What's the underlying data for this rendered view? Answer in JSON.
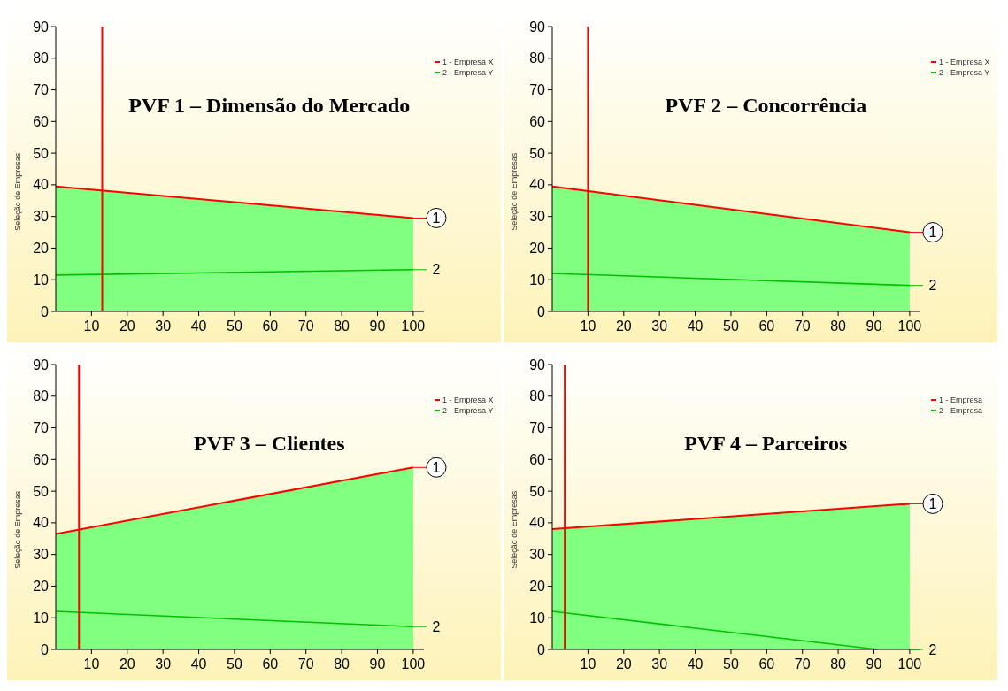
{
  "chart_data": [
    {
      "type": "line",
      "title": "PVF 1 – Dimensão do Mercado",
      "ylabel": "Seleção de Empresas",
      "xlim": [
        0,
        103
      ],
      "ylim": [
        0,
        90
      ],
      "xticks": [
        10,
        20,
        30,
        40,
        50,
        60,
        70,
        80,
        90,
        100
      ],
      "yticks": [
        0,
        10,
        20,
        30,
        40,
        50,
        60,
        70,
        80,
        90
      ],
      "legend": "top right",
      "series": [
        {
          "type": "area",
          "color": "#80ff80",
          "x": [
            0,
            100
          ],
          "values": [
            39.5,
            29.5
          ]
        },
        {
          "name": "1 - Empresa X",
          "type": "line",
          "color": "#ff0000",
          "x": [
            0,
            100
          ],
          "values": [
            39.5,
            29.5
          ]
        },
        {
          "name": "2 - Empresa Y",
          "color": "#00c000",
          "x": [
            0,
            100
          ],
          "values": [
            11.5,
            13.2
          ]
        }
      ],
      "ref_lines": [
        {
          "axis": "x",
          "value": 13,
          "color": "#ff0000"
        }
      ],
      "annotations": [
        "1",
        "2"
      ]
    },
    {
      "type": "line",
      "title": "PVF 2 – Concorrência",
      "ylabel": "Seleção de Empresas",
      "xlim": [
        0,
        103
      ],
      "ylim": [
        0,
        90
      ],
      "xticks": [
        10,
        20,
        30,
        40,
        50,
        60,
        70,
        80,
        90,
        100
      ],
      "yticks": [
        0,
        10,
        20,
        30,
        40,
        50,
        60,
        70,
        80,
        90
      ],
      "legend": "top right",
      "series": [
        {
          "type": "area",
          "color": "#80ff80",
          "x": [
            0,
            100
          ],
          "values": [
            39.5,
            25
          ]
        },
        {
          "name": "1 - Empresa X",
          "type": "line",
          "color": "#ff0000",
          "x": [
            0,
            100
          ],
          "values": [
            39.5,
            25
          ]
        },
        {
          "name": "2 - Empresa Y",
          "color": "#00c000",
          "x": [
            0,
            100
          ],
          "values": [
            12,
            8.2
          ]
        }
      ],
      "ref_lines": [
        {
          "axis": "x",
          "value": 10,
          "color": "#ff0000"
        }
      ],
      "annotations": [
        "1",
        "2"
      ]
    },
    {
      "type": "line",
      "title": "PVF 3 – Clientes",
      "ylabel": "Seleção de Empresas",
      "xlim": [
        0,
        103
      ],
      "ylim": [
        0,
        90
      ],
      "xticks": [
        10,
        20,
        30,
        40,
        50,
        60,
        70,
        80,
        90,
        100
      ],
      "yticks": [
        0,
        10,
        20,
        30,
        40,
        50,
        60,
        70,
        80,
        90
      ],
      "legend": "top right",
      "series": [
        {
          "type": "area",
          "color": "#80ff80",
          "x": [
            0,
            100
          ],
          "values": [
            36.5,
            57.5
          ]
        },
        {
          "name": "1 - Empresa X",
          "type": "line",
          "color": "#ff0000",
          "x": [
            0,
            100
          ],
          "values": [
            36.5,
            57.5
          ]
        },
        {
          "name": "2 - Empresa Y",
          "color": "#00c000",
          "x": [
            0,
            100
          ],
          "values": [
            12,
            7.2
          ]
        }
      ],
      "ref_lines": [
        {
          "axis": "x",
          "value": 6.5,
          "color": "#ff0000"
        }
      ],
      "annotations": [
        "1",
        "2"
      ]
    },
    {
      "type": "line",
      "title": "PVF 4 – Parceiros",
      "ylabel": "Seleção de Empresas",
      "xlim": [
        0,
        103
      ],
      "ylim": [
        0,
        90
      ],
      "xticks": [
        10,
        20,
        30,
        40,
        50,
        60,
        70,
        80,
        90,
        100
      ],
      "yticks": [
        0,
        10,
        20,
        30,
        40,
        50,
        60,
        70,
        80,
        90
      ],
      "legend": "top right",
      "series": [
        {
          "type": "area",
          "color": "#80ff80",
          "x": [
            0,
            100
          ],
          "values": [
            38,
            46
          ]
        },
        {
          "name": "1 - Empresa",
          "type": "line",
          "color": "#ff0000",
          "x": [
            0,
            100
          ],
          "values": [
            38,
            46
          ]
        },
        {
          "name": "2 - Empresa",
          "color": "#00c000",
          "x": [
            0,
            91
          ],
          "values": [
            12,
            0
          ]
        }
      ],
      "ref_lines": [
        {
          "axis": "x",
          "value": 3.5,
          "color": "#ff0000"
        }
      ],
      "annotations": [
        "1",
        "2"
      ]
    }
  ]
}
